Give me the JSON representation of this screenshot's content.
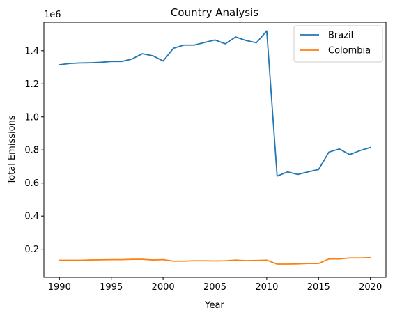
{
  "chart_data": {
    "type": "line",
    "title": "Country Analysis",
    "xlabel": "Year",
    "ylabel": "Total Emissions",
    "y_offset_label": "1e6",
    "x": [
      1990,
      1991,
      1992,
      1993,
      1994,
      1995,
      1996,
      1997,
      1998,
      1999,
      2000,
      2001,
      2002,
      2003,
      2004,
      2005,
      2006,
      2007,
      2008,
      2009,
      2010,
      2011,
      2012,
      2013,
      2014,
      2015,
      2016,
      2017,
      2018,
      2019,
      2020
    ],
    "xlim": [
      1988.5,
      2021.5
    ],
    "ylim": [
      30000,
      1572000
    ],
    "x_ticks": [
      1990,
      1995,
      2000,
      2005,
      2010,
      2015,
      2020
    ],
    "x_tick_labels": [
      "1990",
      "1995",
      "2000",
      "2005",
      "2010",
      "2015",
      "2020"
    ],
    "y_ticks": [
      200000,
      400000,
      600000,
      800000,
      1000000,
      1200000,
      1400000
    ],
    "y_tick_labels": [
      "0.2",
      "0.4",
      "0.6",
      "0.8",
      "1.0",
      "1.2",
      "1.4"
    ],
    "grid": false,
    "legend_position": "upper right",
    "series": [
      {
        "name": "Brazil",
        "color": "#1f77b4",
        "values": [
          1315000,
          1323000,
          1326000,
          1327000,
          1330000,
          1335000,
          1335000,
          1350000,
          1382000,
          1370000,
          1338000,
          1415000,
          1434000,
          1434000,
          1450000,
          1465000,
          1442000,
          1483000,
          1462000,
          1448000,
          1520000,
          642000,
          667000,
          652000,
          668000,
          682000,
          787000,
          806000,
          772000,
          796000,
          815000
        ]
      },
      {
        "name": "Colombia",
        "color": "#ff7f0e",
        "values": [
          133000,
          133000,
          133000,
          135000,
          136000,
          137000,
          137000,
          139000,
          139000,
          135000,
          137000,
          128000,
          128000,
          130000,
          130000,
          129000,
          130000,
          134000,
          131000,
          132000,
          134000,
          110000,
          110000,
          111000,
          114000,
          114000,
          141000,
          141000,
          147000,
          147000,
          149000
        ]
      }
    ]
  }
}
